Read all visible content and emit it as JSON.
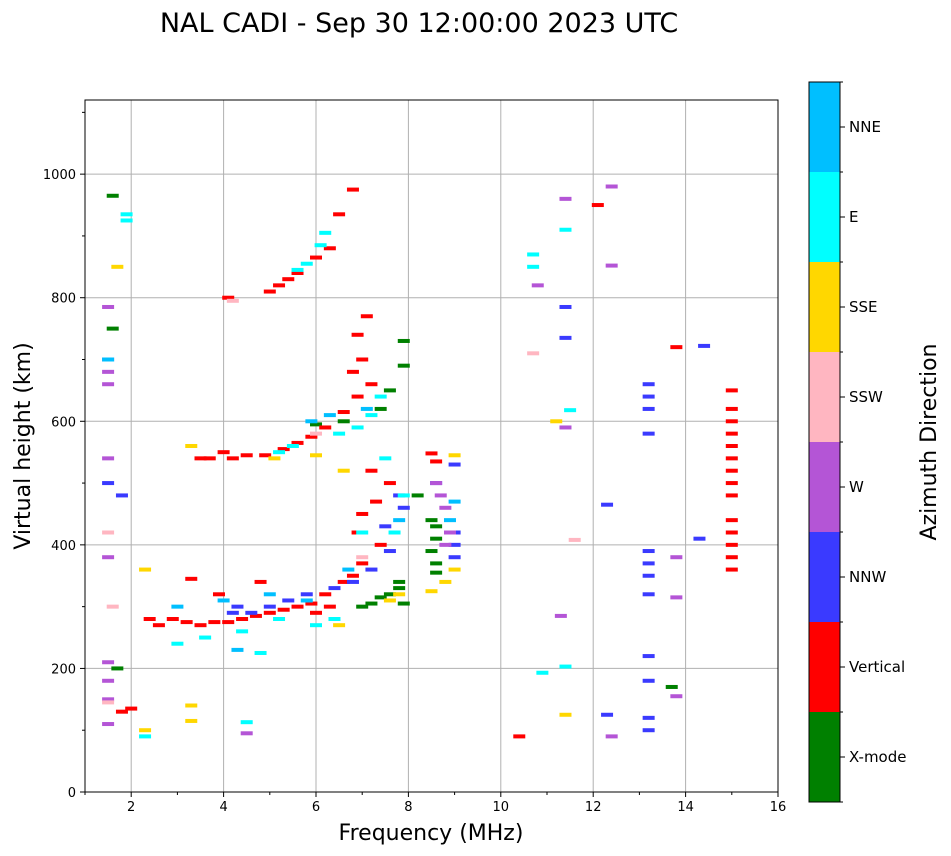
{
  "chart_data": {
    "type": "scatter",
    "title": "NAL CADI - Sep 30 12:00:00 2023 UTC",
    "xlabel": "Frequency (MHz)",
    "ylabel": "Virtual height (km)",
    "xlim": [
      1,
      16
    ],
    "ylim": [
      0,
      1120
    ],
    "xticks": [
      2,
      4,
      6,
      8,
      10,
      12,
      14,
      16
    ],
    "yticks": [
      0,
      200,
      400,
      600,
      800,
      1000
    ],
    "grid": true,
    "colorbar": {
      "label": "Azimuth Direction",
      "categories": [
        "X-mode",
        "Vertical",
        "NNW",
        "W",
        "SSW",
        "SSE",
        "E",
        "NNE"
      ],
      "colors": [
        "#008000",
        "#ff0000",
        "#3a3aff",
        "#b455d6",
        "#ffb6c1",
        "#ffd700",
        "#00ffff",
        "#00bfff"
      ]
    },
    "series": [
      {
        "name": "X-mode",
        "points": [
          [
            1.6,
            965
          ],
          [
            1.6,
            750
          ],
          [
            7.9,
            730
          ],
          [
            7.9,
            690
          ],
          [
            7.6,
            650
          ],
          [
            7.4,
            620
          ],
          [
            6.6,
            600
          ],
          [
            6.0,
            595
          ],
          [
            8.2,
            480
          ],
          [
            8.5,
            440
          ],
          [
            8.6,
            430
          ],
          [
            8.6,
            410
          ],
          [
            8.5,
            390
          ],
          [
            8.6,
            370
          ],
          [
            8.6,
            355
          ],
          [
            7.8,
            340
          ],
          [
            7.8,
            330
          ],
          [
            7.6,
            320
          ],
          [
            7.4,
            315
          ],
          [
            7.2,
            305
          ],
          [
            7.0,
            300
          ],
          [
            7.9,
            305
          ],
          [
            13.7,
            170
          ],
          [
            1.7,
            200
          ]
        ]
      },
      {
        "name": "Vertical",
        "points": [
          [
            6.8,
            975
          ],
          [
            6.5,
            935
          ],
          [
            6.3,
            880
          ],
          [
            6.0,
            865
          ],
          [
            5.6,
            840
          ],
          [
            5.4,
            830
          ],
          [
            5.2,
            820
          ],
          [
            5.0,
            810
          ],
          [
            4.1,
            800
          ],
          [
            6.9,
            740
          ],
          [
            7.1,
            770
          ],
          [
            7.0,
            700
          ],
          [
            6.8,
            680
          ],
          [
            7.2,
            660
          ],
          [
            6.9,
            640
          ],
          [
            6.6,
            615
          ],
          [
            6.2,
            590
          ],
          [
            5.9,
            575
          ],
          [
            5.6,
            565
          ],
          [
            5.3,
            555
          ],
          [
            4.9,
            545
          ],
          [
            4.5,
            545
          ],
          [
            4.2,
            540
          ],
          [
            4.0,
            550
          ],
          [
            3.7,
            540
          ],
          [
            3.5,
            540
          ],
          [
            7.2,
            520
          ],
          [
            7.6,
            500
          ],
          [
            7.3,
            470
          ],
          [
            7.0,
            450
          ],
          [
            6.9,
            420
          ],
          [
            7.4,
            400
          ],
          [
            7.0,
            370
          ],
          [
            6.8,
            350
          ],
          [
            6.6,
            340
          ],
          [
            6.2,
            320
          ],
          [
            5.9,
            305
          ],
          [
            5.6,
            300
          ],
          [
            5.3,
            295
          ],
          [
            5.0,
            290
          ],
          [
            4.7,
            285
          ],
          [
            4.4,
            280
          ],
          [
            4.1,
            275
          ],
          [
            3.8,
            275
          ],
          [
            3.5,
            270
          ],
          [
            3.2,
            275
          ],
          [
            2.9,
            280
          ],
          [
            2.6,
            270
          ],
          [
            2.4,
            280
          ],
          [
            3.3,
            345
          ],
          [
            3.9,
            320
          ],
          [
            4.8,
            340
          ],
          [
            6.0,
            290
          ],
          [
            6.3,
            300
          ],
          [
            8.5,
            548
          ],
          [
            8.6,
            535
          ],
          [
            2.0,
            135
          ],
          [
            1.8,
            130
          ],
          [
            10.4,
            90
          ],
          [
            12.1,
            950
          ],
          [
            13.8,
            720
          ],
          [
            15.0,
            650
          ],
          [
            15.0,
            620
          ],
          [
            15.0,
            600
          ],
          [
            15.0,
            580
          ],
          [
            15.0,
            560
          ],
          [
            15.0,
            540
          ],
          [
            15.0,
            520
          ],
          [
            15.0,
            500
          ],
          [
            15.0,
            480
          ],
          [
            15.0,
            440
          ],
          [
            15.0,
            420
          ],
          [
            15.0,
            400
          ],
          [
            15.0,
            380
          ],
          [
            15.0,
            360
          ]
        ]
      },
      {
        "name": "NNW",
        "points": [
          [
            4.6,
            290
          ],
          [
            4.3,
            300
          ],
          [
            5.4,
            310
          ],
          [
            5.8,
            320
          ],
          [
            6.4,
            330
          ],
          [
            6.8,
            340
          ],
          [
            7.2,
            360
          ],
          [
            7.6,
            390
          ],
          [
            7.5,
            430
          ],
          [
            7.8,
            480
          ],
          [
            7.9,
            460
          ],
          [
            9.0,
            400
          ],
          [
            9.0,
            420
          ],
          [
            9.0,
            380
          ],
          [
            9.0,
            530
          ],
          [
            8.6,
            500
          ],
          [
            5.0,
            300
          ],
          [
            4.2,
            290
          ],
          [
            13.2,
            660
          ],
          [
            13.2,
            640
          ],
          [
            13.2,
            620
          ],
          [
            13.2,
            580
          ],
          [
            13.2,
            390
          ],
          [
            13.2,
            370
          ],
          [
            13.2,
            350
          ],
          [
            13.2,
            320
          ],
          [
            13.2,
            220
          ],
          [
            13.2,
            180
          ],
          [
            13.2,
            120
          ],
          [
            13.2,
            100
          ],
          [
            11.4,
            785
          ],
          [
            11.4,
            735
          ],
          [
            12.3,
            465
          ],
          [
            12.3,
            125
          ],
          [
            14.4,
            722
          ],
          [
            14.3,
            410
          ],
          [
            1.5,
            500
          ],
          [
            1.8,
            480
          ]
        ]
      },
      {
        "name": "W",
        "points": [
          [
            1.5,
            700
          ],
          [
            1.5,
            680
          ],
          [
            1.5,
            660
          ],
          [
            1.5,
            540
          ],
          [
            1.5,
            380
          ],
          [
            1.5,
            210
          ],
          [
            1.5,
            180
          ],
          [
            1.5,
            150
          ],
          [
            1.5,
            110
          ],
          [
            1.5,
            785
          ],
          [
            8.6,
            500
          ],
          [
            8.7,
            480
          ],
          [
            8.8,
            460
          ],
          [
            8.9,
            420
          ],
          [
            8.8,
            400
          ],
          [
            11.4,
            960
          ],
          [
            12.4,
            980
          ],
          [
            12.4,
            852
          ],
          [
            12.4,
            90
          ],
          [
            10.8,
            820
          ],
          [
            11.3,
            285
          ],
          [
            13.8,
            380
          ],
          [
            13.8,
            315
          ],
          [
            13.8,
            155
          ],
          [
            4.5,
            95
          ],
          [
            11.4,
            590
          ]
        ]
      },
      {
        "name": "SSW",
        "points": [
          [
            1.5,
            420
          ],
          [
            1.5,
            145
          ],
          [
            1.6,
            300
          ],
          [
            10.7,
            710
          ],
          [
            11.6,
            408
          ],
          [
            6.0,
            580
          ],
          [
            7.0,
            380
          ],
          [
            4.2,
            795
          ]
        ]
      },
      {
        "name": "SSE",
        "points": [
          [
            3.3,
            560
          ],
          [
            6.0,
            545
          ],
          [
            6.6,
            520
          ],
          [
            7.6,
            310
          ],
          [
            7.8,
            320
          ],
          [
            8.5,
            325
          ],
          [
            9.0,
            360
          ],
          [
            9.0,
            545
          ],
          [
            8.8,
            340
          ],
          [
            2.3,
            360
          ],
          [
            2.3,
            100
          ],
          [
            3.3,
            140
          ],
          [
            3.3,
            115
          ],
          [
            11.4,
            125
          ],
          [
            11.2,
            600
          ],
          [
            1.7,
            850
          ],
          [
            5.1,
            540
          ],
          [
            6.5,
            270
          ]
        ]
      },
      {
        "name": "E",
        "points": [
          [
            6.2,
            905
          ],
          [
            6.1,
            885
          ],
          [
            5.8,
            855
          ],
          [
            5.6,
            845
          ],
          [
            7.4,
            640
          ],
          [
            7.2,
            610
          ],
          [
            6.9,
            590
          ],
          [
            6.5,
            580
          ],
          [
            5.5,
            560
          ],
          [
            5.2,
            550
          ],
          [
            7.5,
            540
          ],
          [
            7.9,
            480
          ],
          [
            7.7,
            420
          ],
          [
            7.0,
            420
          ],
          [
            6.4,
            280
          ],
          [
            6.0,
            270
          ],
          [
            5.2,
            280
          ],
          [
            4.4,
            260
          ],
          [
            3.6,
            250
          ],
          [
            2.3,
            90
          ],
          [
            10.7,
            870
          ],
          [
            10.7,
            850
          ],
          [
            11.4,
            910
          ],
          [
            11.5,
            618
          ],
          [
            10.9,
            193
          ],
          [
            11.4,
            203
          ],
          [
            4.5,
            113
          ],
          [
            1.9,
            935
          ],
          [
            1.9,
            925
          ],
          [
            3.0,
            240
          ],
          [
            4.8,
            225
          ]
        ]
      },
      {
        "name": "NNE",
        "points": [
          [
            5.9,
            600
          ],
          [
            6.3,
            610
          ],
          [
            7.1,
            620
          ],
          [
            6.7,
            360
          ],
          [
            5.8,
            310
          ],
          [
            5.0,
            320
          ],
          [
            4.0,
            310
          ],
          [
            3.0,
            300
          ],
          [
            7.8,
            440
          ],
          [
            8.9,
            440
          ],
          [
            9.0,
            470
          ],
          [
            1.5,
            700
          ],
          [
            4.3,
            230
          ]
        ]
      }
    ]
  }
}
